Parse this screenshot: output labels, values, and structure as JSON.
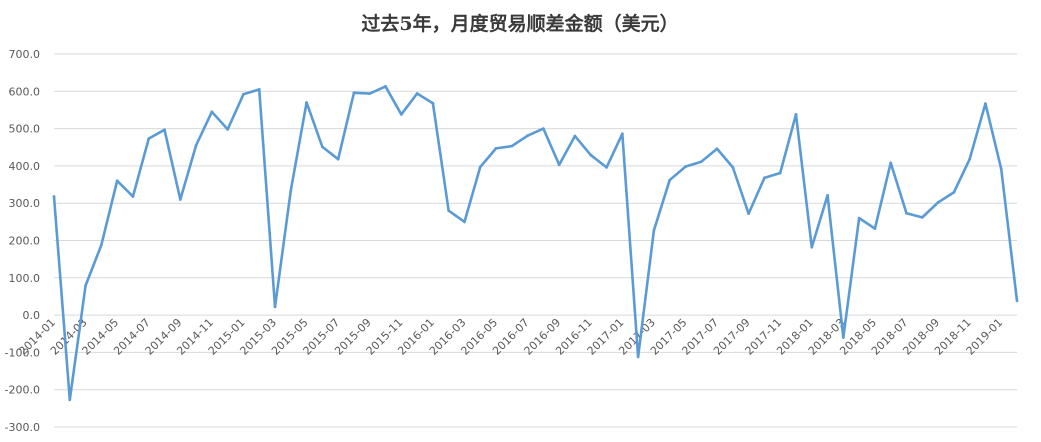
{
  "chart_data": {
    "type": "line",
    "title": "过去5年，月度贸易顺差金额（美元）",
    "xlabel": "",
    "ylabel": "",
    "ylim": [
      -300,
      700
    ],
    "yticks": [
      -300,
      -200,
      -100,
      0,
      100,
      200,
      300,
      400,
      500,
      600,
      700
    ],
    "ytick_labels": [
      "-300.0",
      "-200.0",
      "-100.0",
      "0.0",
      "100.0",
      "200.0",
      "300.0",
      "400.0",
      "500.0",
      "600.0",
      "700.0"
    ],
    "grid": true,
    "legend": "none",
    "line_color": "#5b9bd5",
    "x": [
      "2014-01",
      "2014-02",
      "2014-03",
      "2014-04",
      "2014-05",
      "2014-06",
      "2014-07",
      "2014-08",
      "2014-09",
      "2014-10",
      "2014-11",
      "2014-12",
      "2015-01",
      "2015-02",
      "2015-03",
      "2015-04",
      "2015-05",
      "2015-06",
      "2015-07",
      "2015-08",
      "2015-09",
      "2015-10",
      "2015-11",
      "2015-12",
      "2016-01",
      "2016-02",
      "2016-03",
      "2016-04",
      "2016-05",
      "2016-06",
      "2016-07",
      "2016-08",
      "2016-09",
      "2016-10",
      "2016-11",
      "2016-12",
      "2017-01",
      "2017-02",
      "2017-03",
      "2017-04",
      "2017-05",
      "2017-06",
      "2017-07",
      "2017-08",
      "2017-09",
      "2017-10",
      "2017-11",
      "2017-12",
      "2018-01",
      "2018-02",
      "2018-03",
      "2018-04",
      "2018-05",
      "2018-06",
      "2018-07",
      "2018-08",
      "2018-09",
      "2018-10",
      "2018-11",
      "2018-12",
      "2019-01",
      "2019-02"
    ],
    "x_tick_labels": [
      "2014-01",
      "2014-03",
      "2014-05",
      "2014-07",
      "2014-09",
      "2014-11",
      "2015-01",
      "2015-03",
      "2015-05",
      "2015-07",
      "2015-09",
      "2015-11",
      "2016-01",
      "2016-03",
      "2016-05",
      "2016-07",
      "2016-09",
      "2016-11",
      "2017-01",
      "2017-03",
      "2017-05",
      "2017-07",
      "2017-09",
      "2017-11",
      "2018-01",
      "2018-03",
      "2018-05",
      "2018-07",
      "2018-09",
      "2018-11",
      "2019-01"
    ],
    "series": [
      {
        "values": [
          318,
          -227,
          79,
          188,
          360,
          318,
          473,
          497,
          310,
          455,
          545,
          498,
          592,
          605,
          22,
          334,
          570,
          451,
          418,
          596,
          594,
          613,
          538,
          594,
          568,
          280,
          250,
          397,
          447,
          453,
          481,
          500,
          403,
          480,
          429,
          396,
          486,
          -112,
          227,
          362,
          398,
          411,
          446,
          396,
          272,
          368,
          381,
          538,
          182,
          321,
          -60,
          260,
          232,
          408,
          273,
          262,
          302,
          329,
          418,
          567,
          392,
          38
        ]
      }
    ]
  }
}
